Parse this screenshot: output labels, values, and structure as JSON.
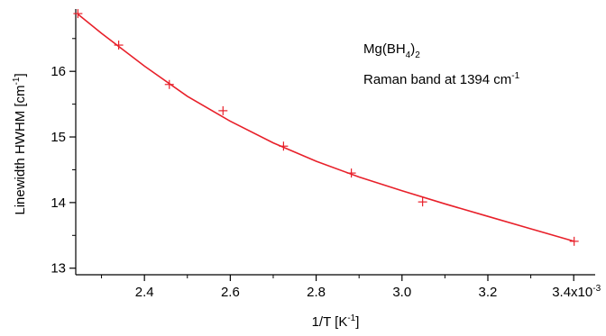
{
  "chart_data": {
    "type": "scatter",
    "xlabel": {
      "main": "1/T [K",
      "sup": "-1",
      "end": "]"
    },
    "ylabel": {
      "main": "Linewidth HWHM [cm",
      "sup": "-1",
      "end": "]"
    },
    "xlim": [
      2.24,
      3.45
    ],
    "ylim": [
      12.9,
      16.95
    ],
    "x_ticks": [
      2.4,
      2.6,
      2.8,
      3.0,
      3.2,
      3.4
    ],
    "x_tick_labels": [
      "2.4",
      "2.6",
      "2.8",
      "3.0",
      "3.2",
      "3.4x10"
    ],
    "x_tick_last_sup": "-3",
    "x_minor_ticks": [
      2.3,
      2.5,
      2.7,
      2.9,
      3.1,
      3.3
    ],
    "y_ticks": [
      13,
      14,
      15,
      16
    ],
    "y_tick_labels": [
      "13",
      "14",
      "15",
      "16"
    ],
    "y_minor_ticks": [
      13.5,
      14.5,
      15.5,
      16.5
    ],
    "series": [
      {
        "marker": "+",
        "color": "#e8202a",
        "x": [
          2.245,
          2.34,
          2.458,
          2.583,
          2.724,
          2.882,
          3.048,
          3.401
        ],
        "y": [
          16.88,
          16.4,
          15.8,
          15.4,
          14.86,
          14.45,
          14.01,
          13.41
        ]
      }
    ],
    "fit": {
      "color": "#e8202a",
      "x": [
        2.245,
        2.3,
        2.4,
        2.5,
        2.6,
        2.7,
        2.8,
        2.9,
        3.0,
        3.1,
        3.2,
        3.3,
        3.401
      ],
      "y": [
        16.87,
        16.58,
        16.08,
        15.62,
        15.24,
        14.91,
        14.63,
        14.39,
        14.18,
        13.98,
        13.79,
        13.6,
        13.41
      ]
    },
    "annotation": {
      "line1": {
        "pre": "Mg(BH",
        "sub1": "4",
        "mid": ")",
        "sub2": "2"
      },
      "line2": {
        "main": "Raman band at 1394 cm",
        "sup": "-1"
      }
    },
    "grid": false,
    "legend": "none"
  }
}
